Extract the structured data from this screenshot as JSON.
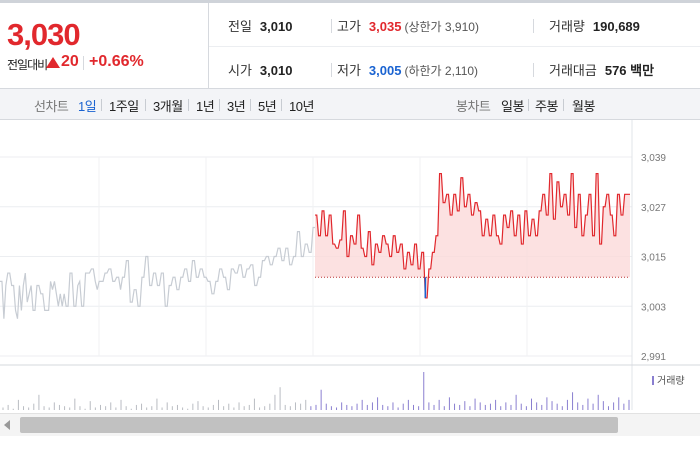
{
  "quote": {
    "price": "3,030",
    "change_label": "전일대비",
    "change_value": "20",
    "change_rate": "+0.66%",
    "direction": "up",
    "prev_label": "전일",
    "prev_value": "3,010",
    "high_label": "고가",
    "high_value": "3,035",
    "upper_limit": "(상한가 3,910)",
    "volume_label": "거래량",
    "volume_value": "190,689",
    "open_label": "시가",
    "open_value": "3,010",
    "low_label": "저가",
    "low_value": "3,005",
    "lower_limit": "(하한가 2,110)",
    "amount_label": "거래대금",
    "amount_value": "576 백만"
  },
  "tabs": {
    "line_head": "선차트",
    "line_items": [
      "1일",
      "1주일",
      "3개월",
      "1년",
      "3년",
      "5년",
      "10년"
    ],
    "selected": "1일",
    "candle_head": "봉차트",
    "candle_items": [
      "일봉",
      "주봉",
      "월봉"
    ]
  },
  "colors": {
    "up": "#e1282d",
    "down": "#1a63d1",
    "prev_day": "#c7ccd3",
    "volume": "#8a7fd0",
    "fill": "#fbdada"
  },
  "icons": {
    "scroll_left": "triangle-left-icon",
    "volume_swatch": "legend-swatch-icon"
  },
  "chart_data": {
    "type": "line",
    "title": "",
    "y_ticks": [
      "3,039",
      "3,027",
      "3,015",
      "3,003",
      "2,991"
    ],
    "ylim": [
      2991,
      3039
    ],
    "reference_price": 3010,
    "volume_legend": "거래량",
    "series": [
      {
        "values": [
          3009,
          3009,
          3000,
          3008,
          3011,
          3011,
          3008,
          3008,
          3002,
          3000,
          3008,
          3002,
          3008,
          3011,
          3004,
          3006,
          3008,
          3002,
          3002,
          3008,
          3008,
          3006,
          3006,
          3002,
          3002,
          3002,
          3009,
          3007,
          3009,
          3006,
          3003,
          3006,
          3003,
          3006,
          3003,
          3003,
          3011,
          3011,
          3003,
          3003,
          3008,
          3009,
          3003,
          3003,
          3011,
          3011,
          3011,
          3012,
          3012,
          3009,
          3007,
          3009,
          3009,
          3009,
          3011,
          3011,
          3012,
          3012,
          3009,
          3009,
          3010,
          3010,
          3007,
          3010,
          3010,
          3014,
          3014,
          3004,
          3004,
          3007,
          3007,
          3003,
          3003,
          3010,
          3010,
          3015,
          3015,
          3008,
          3008,
          3011,
          3011,
          3008,
          3008,
          3011,
          3011,
          3003,
          3003,
          3008,
          3008,
          3010,
          3010,
          3007,
          3007,
          3010,
          3010,
          3012,
          3012,
          3009,
          3009,
          3014,
          3014,
          3010,
          3010,
          3012,
          3012,
          3010,
          3010,
          3009,
          3009,
          3006,
          3006,
          3009,
          3009,
          3012,
          3012,
          3010,
          3010,
          3007,
          3007,
          3012,
          3012,
          3011,
          3011,
          3013,
          3013,
          3010,
          3010,
          3012,
          3012,
          3013,
          3013,
          3008,
          3008,
          3010,
          3010,
          3014,
          3014,
          3015,
          3015,
          3013,
          3013,
          3015,
          3015,
          3017,
          3017,
          3014,
          3014,
          3017,
          3017,
          3013,
          3013,
          3015,
          3015,
          3021,
          3021,
          3015,
          3015,
          3018,
          3018,
          3016,
          3016,
          3022,
          3022
        ]
      },
      {
        "values": [
          3025,
          3025,
          3020,
          3020,
          3026,
          3026,
          3020,
          3020,
          3025,
          3025,
          3018,
          3018,
          3017,
          3017,
          3019,
          3019,
          3026,
          3026,
          3015,
          3015,
          3020,
          3020,
          3018,
          3018,
          3025,
          3025,
          3017,
          3017,
          3015,
          3015,
          3021,
          3021,
          3013,
          3013,
          3018,
          3018,
          3016,
          3016,
          3020,
          3020,
          3018,
          3018,
          3015,
          3015,
          3020,
          3020,
          3016,
          3016,
          3018,
          3018,
          3012,
          3012,
          3016,
          3016,
          3013,
          3013,
          3018,
          3018,
          3012,
          3012,
          3016,
          3016,
          3005,
          3005,
          3012,
          3012,
          3016,
          3016,
          3020,
          3020,
          3035,
          3035,
          3028,
          3028,
          3030,
          3030,
          3025,
          3025,
          3030,
          3030,
          3026,
          3026,
          3034,
          3034,
          3027,
          3027,
          3030,
          3030,
          3025,
          3025,
          3028,
          3028,
          3026,
          3026,
          3020,
          3020,
          3024,
          3024,
          3020,
          3020,
          3025,
          3025,
          3020,
          3020,
          3018,
          3018,
          3025,
          3025,
          3022,
          3022,
          3026,
          3026,
          3020,
          3020,
          3025,
          3025,
          3018,
          3018,
          3026,
          3026,
          3020,
          3020,
          3024,
          3024,
          3020,
          3020,
          3026,
          3026,
          3030,
          3030,
          3025,
          3025,
          3035,
          3035,
          3024,
          3024,
          3033,
          3033,
          3027,
          3027,
          3030,
          3030,
          3025,
          3025,
          3035,
          3035,
          3022,
          3022,
          3030,
          3030,
          3020,
          3020,
          3025,
          3025,
          3030,
          3030,
          3020,
          3020,
          3035,
          3035,
          3018,
          3018,
          3027,
          3027,
          3030,
          3030,
          3025,
          3025,
          3020,
          3020,
          3030,
          3030,
          3025,
          3025,
          3030,
          3030,
          3030,
          3030
        ]
      }
    ],
    "volume": [
      2,
      4,
      1,
      8,
      3,
      2,
      5,
      12,
      3,
      2,
      6,
      4,
      3,
      2,
      9,
      3,
      1,
      7,
      2,
      4,
      3,
      6,
      2,
      8,
      3,
      1,
      4,
      5,
      2,
      3,
      9,
      2,
      6,
      3,
      4,
      2,
      1,
      5,
      7,
      3,
      2,
      4,
      8,
      3,
      5,
      2,
      6,
      3,
      4,
      9,
      2,
      3,
      5,
      12,
      18,
      4,
      3,
      6,
      5,
      8,
      3,
      4,
      16,
      5,
      3,
      2,
      6,
      4,
      3,
      5,
      8,
      4,
      6,
      10,
      4,
      3,
      6,
      2,
      5,
      8,
      4,
      3,
      30,
      6,
      4,
      8,
      3,
      10,
      5,
      4,
      7,
      3,
      9,
      6,
      4,
      5,
      8,
      3,
      6,
      4,
      12,
      5,
      3,
      9,
      6,
      4,
      10,
      7,
      5,
      3,
      8,
      14,
      6,
      4,
      9,
      5,
      12,
      7,
      3,
      6,
      10,
      5,
      8
    ]
  }
}
